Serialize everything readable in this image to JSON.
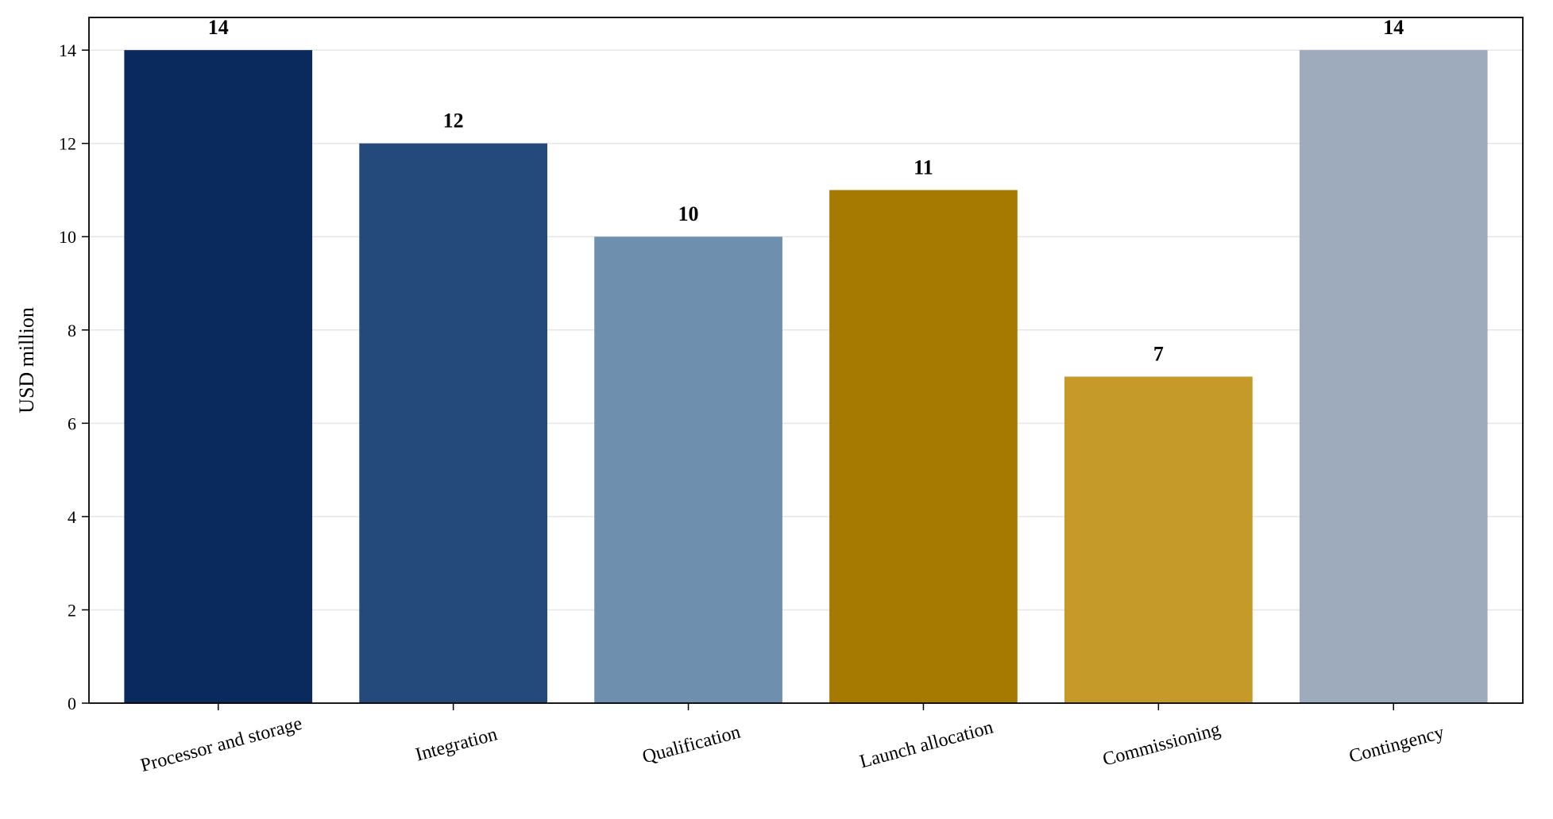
{
  "chart_data": {
    "type": "bar",
    "title": "",
    "xlabel": "",
    "ylabel": "USD million",
    "ylim": [
      0,
      14.7
    ],
    "yticks": [
      0,
      2,
      4,
      6,
      8,
      10,
      12,
      14
    ],
    "grid": "horizontal",
    "categories": [
      "Processor and storage",
      "Integration",
      "Qualification",
      "Launch allocation",
      "Commissioning",
      "Contingency"
    ],
    "values": [
      14,
      12,
      10,
      11,
      7,
      14
    ],
    "colors": [
      "#0a2a5e",
      "#24497b",
      "#6f8fae",
      "#a67a00",
      "#c59a28",
      "#9dabbd"
    ],
    "data_labels": [
      "14",
      "12",
      "10",
      "11",
      "7",
      "14"
    ]
  }
}
